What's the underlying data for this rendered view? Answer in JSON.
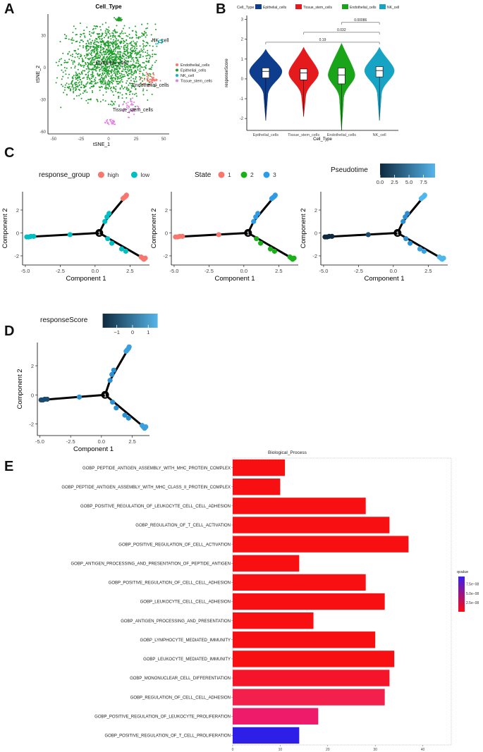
{
  "panel_labels": [
    "A",
    "B",
    "C",
    "D",
    "E"
  ],
  "chart_data": [
    {
      "id": "A",
      "type": "scatter",
      "title": "Cell_Type",
      "xlabel": "tSNE_1",
      "ylabel": "tSNE_2",
      "xlim": [
        -55,
        55
      ],
      "ylim": [
        -62,
        50
      ],
      "xticks": [
        -50,
        -25,
        0,
        25,
        50
      ],
      "yticks": [
        30,
        0,
        -30,
        -60
      ],
      "legend": [
        {
          "name": "Endothelial_cells",
          "color": "#F8766D"
        },
        {
          "name": "Epithelial_cells",
          "color": "#1E9E2A"
        },
        {
          "name": "NK_cell",
          "color": "#00BFC4"
        },
        {
          "name": "Tissue_stem_cells",
          "color": "#E27FE0"
        }
      ],
      "cluster_labels": [
        {
          "text": "Epithelial_cells",
          "x": 3,
          "y": 3
        },
        {
          "text": "NK_cell",
          "x": 47,
          "y": 24
        },
        {
          "text": "Endothelial_cells",
          "x": 38,
          "y": -18
        },
        {
          "text": "Tissue_stem_cells",
          "x": 22,
          "y": -41
        }
      ]
    },
    {
      "id": "B",
      "type": "violin",
      "legend_title": "Cell_Type",
      "categories": [
        "Epithelial_cells",
        "Tissue_stem_cells",
        "Endothelial_cells",
        "NK_cell"
      ],
      "colors": [
        "#0D3D8C",
        "#E41A1C",
        "#1AA41A",
        "#17A3C4"
      ],
      "xlabel": "Cell_Type",
      "ylabel": "responseScore",
      "ylim": [
        -2.6,
        3.2
      ],
      "yticks": [
        3,
        2,
        1,
        0,
        -1,
        -2
      ],
      "medians": [
        0.38,
        0.3,
        0.2,
        0.42
      ],
      "q1": [
        0.05,
        -0.05,
        -0.25,
        0.1
      ],
      "q3": [
        0.55,
        0.5,
        0.55,
        0.62
      ],
      "mins": [
        -2.1,
        -1.9,
        -2.6,
        -2.1
      ],
      "maxs": [
        1.5,
        1.6,
        1.8,
        1.6
      ],
      "comparisons": [
        {
          "from": 3,
          "to": 4,
          "label": "0.00086"
        },
        {
          "from": 2,
          "to": 4,
          "label": "0.032"
        },
        {
          "from": 1,
          "to": 4,
          "label": "0.19"
        }
      ]
    },
    {
      "id": "C1",
      "type": "trajectory",
      "legend_title": "response_group",
      "legend": [
        {
          "name": "high",
          "color": "#F8766D"
        },
        {
          "name": "low",
          "color": "#00BFC4"
        }
      ],
      "xlabel": "Component 1",
      "ylabel": "Component 2",
      "xlim": [
        -5.2,
        3.9
      ],
      "ylim": [
        -2.8,
        3.6
      ],
      "xticks": [
        -5.0,
        -2.5,
        0.0,
        2.5
      ],
      "xtick_labels": [
        "-5.0",
        "-2.5",
        "0.0",
        "2.5"
      ],
      "yticks": [
        2,
        0,
        -2
      ],
      "branch_point": {
        "x": 0.3,
        "y": 0.0,
        "label": "1"
      },
      "points": [
        {
          "x": 2.1,
          "y": 3.1,
          "c": "#F8766D"
        },
        {
          "x": 2.2,
          "y": 3.2,
          "c": "#F8766D"
        },
        {
          "x": 2.0,
          "y": 3.0,
          "c": "#F8766D"
        },
        {
          "x": 2.25,
          "y": 3.3,
          "c": "#F8766D"
        },
        {
          "x": 1.0,
          "y": 1.7,
          "c": "#00BFC4"
        },
        {
          "x": 0.85,
          "y": 1.4,
          "c": "#00BFC4"
        },
        {
          "x": 0.7,
          "y": 1.0,
          "c": "#00BFC4"
        },
        {
          "x": 0.9,
          "y": -0.5,
          "c": "#00BFC4"
        },
        {
          "x": 1.2,
          "y": -0.9,
          "c": "#00BFC4"
        },
        {
          "x": 1.9,
          "y": -1.4,
          "c": "#00BFC4"
        },
        {
          "x": 2.2,
          "y": -1.6,
          "c": "#00BFC4"
        },
        {
          "x": 3.3,
          "y": -2.1,
          "c": "#F8766D"
        },
        {
          "x": 3.5,
          "y": -2.3,
          "c": "#F8766D"
        },
        {
          "x": 3.4,
          "y": -2.2,
          "c": "#F8766D"
        },
        {
          "x": 3.6,
          "y": -2.2,
          "c": "#F8766D"
        },
        {
          "x": -1.8,
          "y": -0.15,
          "c": "#00BFC4"
        },
        {
          "x": -4.9,
          "y": -0.35,
          "c": "#00BFC4"
        },
        {
          "x": -4.6,
          "y": -0.3,
          "c": "#00BFC4"
        },
        {
          "x": -4.4,
          "y": -0.3,
          "c": "#00BFC4"
        },
        {
          "x": -4.75,
          "y": -0.35,
          "c": "#00BFC4"
        }
      ]
    },
    {
      "id": "C2",
      "type": "trajectory",
      "legend_title": "State",
      "legend": [
        {
          "name": "1",
          "color": "#F8766D"
        },
        {
          "name": "2",
          "color": "#1AB01A"
        },
        {
          "name": "3",
          "color": "#2E9BE6"
        }
      ],
      "xlabel": "Component 1",
      "ylabel": "Component 2",
      "xlim": [
        -5.2,
        3.9
      ],
      "ylim": [
        -2.8,
        3.6
      ],
      "xticks": [
        -5.0,
        -2.5,
        0.0,
        2.5
      ],
      "xtick_labels": [
        "-5.0",
        "-2.5",
        "0.0",
        "2.5"
      ],
      "yticks": [
        2,
        0,
        -2
      ],
      "branch_point": {
        "x": 0.3,
        "y": 0.0,
        "label": "1"
      },
      "points": [
        {
          "x": 2.1,
          "y": 3.1,
          "c": "#2E9BE6"
        },
        {
          "x": 2.2,
          "y": 3.2,
          "c": "#2E9BE6"
        },
        {
          "x": 2.0,
          "y": 3.0,
          "c": "#2E9BE6"
        },
        {
          "x": 2.25,
          "y": 3.3,
          "c": "#2E9BE6"
        },
        {
          "x": 1.0,
          "y": 1.7,
          "c": "#2E9BE6"
        },
        {
          "x": 0.85,
          "y": 1.4,
          "c": "#2E9BE6"
        },
        {
          "x": 0.7,
          "y": 1.0,
          "c": "#2E9BE6"
        },
        {
          "x": 0.9,
          "y": -0.5,
          "c": "#1AB01A"
        },
        {
          "x": 1.2,
          "y": -0.9,
          "c": "#1AB01A"
        },
        {
          "x": 1.9,
          "y": -1.4,
          "c": "#1AB01A"
        },
        {
          "x": 2.2,
          "y": -1.6,
          "c": "#1AB01A"
        },
        {
          "x": 3.3,
          "y": -2.1,
          "c": "#1AB01A"
        },
        {
          "x": 3.5,
          "y": -2.3,
          "c": "#1AB01A"
        },
        {
          "x": 3.4,
          "y": -2.2,
          "c": "#1AB01A"
        },
        {
          "x": 3.6,
          "y": -2.2,
          "c": "#1AB01A"
        },
        {
          "x": -1.8,
          "y": -0.15,
          "c": "#F8766D"
        },
        {
          "x": -4.9,
          "y": -0.35,
          "c": "#F8766D"
        },
        {
          "x": -4.6,
          "y": -0.3,
          "c": "#F8766D"
        },
        {
          "x": -4.4,
          "y": -0.3,
          "c": "#F8766D"
        },
        {
          "x": -4.75,
          "y": -0.35,
          "c": "#F8766D"
        }
      ]
    },
    {
      "id": "C3",
      "type": "trajectory",
      "legend_title": "Pseudotime",
      "colorbar_ticks": [
        0.0,
        2.5,
        5.0,
        7.5
      ],
      "colorbar_tick_labels": [
        "0.0",
        "2.5",
        "5.0",
        "7.5"
      ],
      "colorbar_range": [
        0,
        9.5
      ],
      "colorbar_colors": [
        "#0E2A3F",
        "#56B4E9"
      ],
      "xlabel": "Component 1",
      "ylabel": "Component 2",
      "xlim": [
        -5.2,
        3.9
      ],
      "ylim": [
        -2.8,
        3.6
      ],
      "xticks": [
        -5.0,
        -2.5,
        0.0,
        2.5
      ],
      "xtick_labels": [
        "-5.0",
        "-2.5",
        "0.0",
        "2.5"
      ],
      "yticks": [
        2,
        0,
        -2
      ],
      "branch_point": {
        "x": 0.3,
        "y": 0.0,
        "label": "1"
      },
      "points": [
        {
          "x": 2.1,
          "y": 3.1,
          "c": "#4EB8EE"
        },
        {
          "x": 2.2,
          "y": 3.2,
          "c": "#4EB8EE"
        },
        {
          "x": 2.0,
          "y": 3.0,
          "c": "#4EB8EE"
        },
        {
          "x": 2.25,
          "y": 3.3,
          "c": "#4EB8EE"
        },
        {
          "x": 1.0,
          "y": 1.7,
          "c": "#2C8FCF"
        },
        {
          "x": 0.85,
          "y": 1.4,
          "c": "#2C8FCF"
        },
        {
          "x": 0.7,
          "y": 1.0,
          "c": "#2C8FCF"
        },
        {
          "x": 0.9,
          "y": -0.5,
          "c": "#2C8FCF"
        },
        {
          "x": 1.2,
          "y": -0.9,
          "c": "#2C8FCF"
        },
        {
          "x": 1.9,
          "y": -1.4,
          "c": "#3AA3DF"
        },
        {
          "x": 2.2,
          "y": -1.6,
          "c": "#3AA3DF"
        },
        {
          "x": 3.3,
          "y": -2.1,
          "c": "#4EB8EE"
        },
        {
          "x": 3.5,
          "y": -2.3,
          "c": "#4EB8EE"
        },
        {
          "x": 3.4,
          "y": -2.2,
          "c": "#4EB8EE"
        },
        {
          "x": 3.6,
          "y": -2.2,
          "c": "#4EB8EE"
        },
        {
          "x": -1.8,
          "y": -0.15,
          "c": "#1A4A6E"
        },
        {
          "x": -4.9,
          "y": -0.35,
          "c": "#0E2A3F"
        },
        {
          "x": -4.6,
          "y": -0.3,
          "c": "#0E2A3F"
        },
        {
          "x": -4.4,
          "y": -0.3,
          "c": "#0E2A3F"
        },
        {
          "x": -4.75,
          "y": -0.35,
          "c": "#0E2A3F"
        }
      ]
    },
    {
      "id": "D",
      "type": "trajectory",
      "legend_title": "responseScore",
      "colorbar_ticks": [
        -1,
        0,
        1
      ],
      "colorbar_tick_labels": [
        "−1",
        "0",
        "1"
      ],
      "colorbar_range": [
        -1.9,
        1.6
      ],
      "colorbar_colors": [
        "#0E2A3F",
        "#56B4E9"
      ],
      "xlabel": "Component 1",
      "ylabel": "Component 2",
      "xlim": [
        -5.2,
        3.9
      ],
      "ylim": [
        -2.8,
        3.6
      ],
      "xticks": [
        -5.0,
        -2.5,
        0.0,
        2.5
      ],
      "xtick_labels": [
        "-5.0",
        "-2.5",
        "0.0",
        "2.5"
      ],
      "yticks": [
        2,
        0,
        -2
      ],
      "branch_point": {
        "x": 0.3,
        "y": 0.0,
        "label": "1"
      },
      "points": [
        {
          "x": 2.1,
          "y": 3.1,
          "c": "#3A9FDD"
        },
        {
          "x": 2.2,
          "y": 3.2,
          "c": "#3A9FDD"
        },
        {
          "x": 2.0,
          "y": 3.0,
          "c": "#3A9FDD"
        },
        {
          "x": 2.25,
          "y": 3.3,
          "c": "#3A9FDD"
        },
        {
          "x": 1.0,
          "y": 1.7,
          "c": "#2C8FCF"
        },
        {
          "x": 0.85,
          "y": 1.4,
          "c": "#2C8FCF"
        },
        {
          "x": 0.7,
          "y": 1.0,
          "c": "#2C8FCF"
        },
        {
          "x": 0.9,
          "y": -0.5,
          "c": "#2C8FCF"
        },
        {
          "x": 1.2,
          "y": -0.9,
          "c": "#2C8FCF"
        },
        {
          "x": 1.9,
          "y": -1.4,
          "c": "#2C8FCF"
        },
        {
          "x": 2.2,
          "y": -1.6,
          "c": "#2C8FCF"
        },
        {
          "x": 3.3,
          "y": -2.1,
          "c": "#3A9FDD"
        },
        {
          "x": 3.5,
          "y": -2.3,
          "c": "#3A9FDD"
        },
        {
          "x": 3.4,
          "y": -2.2,
          "c": "#3A9FDD"
        },
        {
          "x": 3.6,
          "y": -2.2,
          "c": "#3A9FDD"
        },
        {
          "x": -1.8,
          "y": -0.15,
          "c": "#2C8FCF"
        },
        {
          "x": -4.9,
          "y": -0.35,
          "c": "#1A4A6E"
        },
        {
          "x": -4.6,
          "y": -0.3,
          "c": "#1A4A6E"
        },
        {
          "x": -4.4,
          "y": -0.3,
          "c": "#1A4A6E"
        },
        {
          "x": -4.75,
          "y": -0.35,
          "c": "#1A4A6E"
        }
      ]
    },
    {
      "id": "E",
      "type": "bar",
      "orientation": "horizontal",
      "title": "Biological_Process",
      "categories": [
        "GOBP_PEPTIDE_ANTIGEN_ASSEMBLY_WITH_MHC_PROTEIN_COMPLEX",
        "GOBP_PEPTIDE_ANTIGEN_ASSEMBLY_WITH_MHC_CLASS_II_PROTEIN_COMPLEX",
        "GOBP_POSITIVE_REGULATION_OF_LEUKOCYTE_CELL_CELL_ADHESION",
        "GOBP_REGULATION_OF_T_CELL_ACTIVATION",
        "GOBP_POSITIVE_REGULATION_OF_CELL_ACTIVATION",
        "GOBP_ANTIGEN_PROCESSING_AND_PRESENTATION_OF_PEPTIDE_ANTIGEN",
        "GOBP_POSITIVE_REGULATION_OF_CELL_CELL_ADHESION",
        "GOBP_LEUKOCYTE_CELL_CELL_ADHESION",
        "GOBP_ANTIGEN_PROCESSING_AND_PRESENTATION",
        "GOBP_LYMPHOCYTE_MEDIATED_IMMUNITY",
        "GOBP_LEUKOCYTE_MEDIATED_IMMUNITY",
        "GOBP_MONONUCLEAR_CELL_DIFFERENTIATION",
        "GOBP_REGULATION_OF_CELL_CELL_ADHESION",
        "GOBP_POSITIVE_REGULATION_OF_LEUKOCYTE_PROLIFERATION",
        "GOBP_POSITIVE_REGULATION_OF_T_CELL_PROLIFERATION"
      ],
      "values": [
        11,
        10,
        28,
        33,
        37,
        14,
        28,
        32,
        17,
        30,
        34,
        33,
        32,
        18,
        14
      ],
      "bar_colors": [
        "#F80F12",
        "#F80F12",
        "#F80F12",
        "#F80F12",
        "#F80F12",
        "#F80F12",
        "#F80F12",
        "#F80F12",
        "#F80F12",
        "#F80F12",
        "#F80F12",
        "#F4152A",
        "#F2204A",
        "#EE1A6A",
        "#2E1FE8"
      ],
      "xlim": [
        0,
        46
      ],
      "xticks": [
        0,
        10,
        20,
        30,
        40
      ],
      "legend_title": "qvalue",
      "colorbar_ticks": [
        7.5e-08,
        5e-08,
        2.5e-08
      ],
      "colorbar_tick_labels": [
        "7.5e−08",
        "5.0e−08",
        "2.5e−08"
      ],
      "colorbar_range": [
        1e-09,
        9.5e-08
      ],
      "colorbar_colors": [
        "#FF0A12",
        "#3A1FF0"
      ]
    }
  ]
}
